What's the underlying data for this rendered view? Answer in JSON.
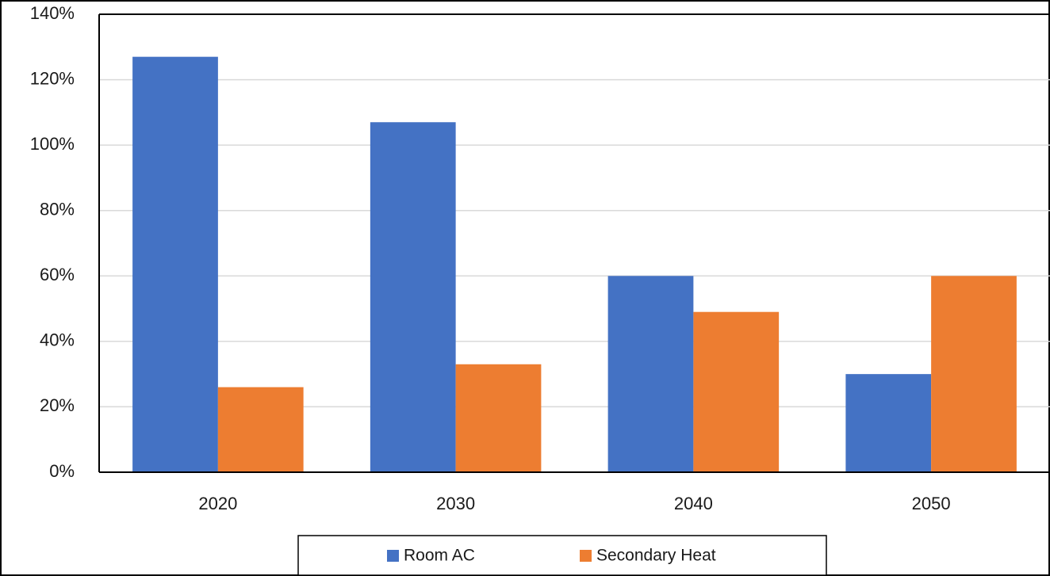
{
  "chart_data": {
    "type": "bar",
    "title": "",
    "xlabel": "",
    "ylabel": "",
    "categories": [
      "2020",
      "2030",
      "2040",
      "2050"
    ],
    "series": [
      {
        "name": "Room AC",
        "color": "#4472C4",
        "values": [
          127,
          107,
          60,
          30
        ]
      },
      {
        "name": "Secondary Heat",
        "color": "#ED7D31",
        "values": [
          26,
          33,
          49,
          60
        ]
      }
    ],
    "ylim": [
      0,
      140
    ],
    "yticks": [
      0,
      20,
      40,
      60,
      80,
      100,
      120,
      140
    ],
    "ytick_labels": [
      "0%",
      "20%",
      "40%",
      "60%",
      "80%",
      "100%",
      "120%",
      "140%"
    ],
    "grid": true,
    "legend_position": "bottom"
  }
}
